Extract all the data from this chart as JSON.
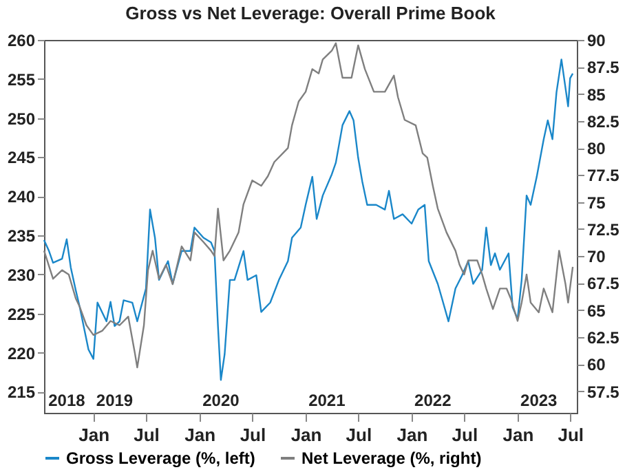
{
  "chart_data": {
    "type": "line",
    "title": "Gross vs Net Leverage: Overall Prime Book",
    "xlim": [
      "2018-07-15",
      "2023-07-24"
    ],
    "xticks": [
      {
        "value": "2019-01-01",
        "label": "Jan"
      },
      {
        "value": "2019-07-01",
        "label": "Jul"
      },
      {
        "value": "2020-01-01",
        "label": "Jan"
      },
      {
        "value": "2020-07-01",
        "label": "Jul"
      },
      {
        "value": "2021-01-01",
        "label": "Jan"
      },
      {
        "value": "2021-07-01",
        "label": "Jul"
      },
      {
        "value": "2022-01-01",
        "label": "Jan"
      },
      {
        "value": "2022-07-01",
        "label": "Jul"
      },
      {
        "value": "2023-01-01",
        "label": "Jan"
      },
      {
        "value": "2023-07-01",
        "label": "Jul"
      }
    ],
    "x2lim": [
      "2018-07-15",
      "2023-07-24"
    ],
    "x2ticks": [
      {
        "value": "2018-10-01",
        "label": "2018"
      },
      {
        "value": "2019-03-15",
        "label": "2019"
      },
      {
        "value": "2020-03-15",
        "label": "2020"
      },
      {
        "value": "2021-03-15",
        "label": "2021"
      },
      {
        "value": "2022-03-15",
        "label": "2022"
      },
      {
        "value": "2023-03-15",
        "label": "2023"
      }
    ],
    "ylim": [
      212.3,
      260
    ],
    "yticks": [
      215,
      220,
      225,
      230,
      235,
      240,
      245,
      250,
      255,
      260
    ],
    "y2lim": [
      55.5,
      90
    ],
    "y2ticks": [
      57.5,
      60,
      62.5,
      65,
      67.5,
      70,
      72.5,
      75,
      77.5,
      80,
      82.5,
      85,
      87.5,
      90
    ],
    "grid": false,
    "legend": "bottom",
    "series": [
      {
        "name": "Gross Leverage (%, left)",
        "color": "#1a87c9",
        "axis": "y",
        "x": [
          "2018-07-15",
          "2018-08-01",
          "2018-08-15",
          "2018-09-15",
          "2018-10-01",
          "2018-10-15",
          "2018-11-01",
          "2018-11-15",
          "2018-12-15",
          "2019-01-01",
          "2019-01-15",
          "2019-02-15",
          "2019-03-01",
          "2019-03-15",
          "2019-04-01",
          "2019-04-15",
          "2019-05-15",
          "2019-06-01",
          "2019-07-01",
          "2019-07-15",
          "2019-08-01",
          "2019-08-15",
          "2019-09-15",
          "2019-10-01",
          "2019-11-01",
          "2019-12-01",
          "2019-12-15",
          "2020-01-15",
          "2020-02-10",
          "2020-02-22",
          "2020-03-05",
          "2020-03-15",
          "2020-03-28",
          "2020-04-15",
          "2020-05-01",
          "2020-06-01",
          "2020-06-15",
          "2020-07-15",
          "2020-08-01",
          "2020-09-01",
          "2020-10-01",
          "2020-11-01",
          "2020-11-15",
          "2020-12-15",
          "2021-01-01",
          "2021-01-24",
          "2021-02-08",
          "2021-03-01",
          "2021-04-01",
          "2021-04-15",
          "2021-05-08",
          "2021-06-01",
          "2021-06-15",
          "2021-07-01",
          "2021-07-15",
          "2021-08-01",
          "2021-09-01",
          "2021-10-01",
          "2021-10-15",
          "2021-11-01",
          "2021-12-01",
          "2022-01-01",
          "2022-01-24",
          "2022-02-15",
          "2022-03-01",
          "2022-04-01",
          "2022-04-15",
          "2022-05-08",
          "2022-06-01",
          "2022-06-24",
          "2022-07-15",
          "2022-08-01",
          "2022-09-01",
          "2022-09-15",
          "2022-10-01",
          "2022-10-15",
          "2022-11-01",
          "2022-12-01",
          "2022-12-15",
          "2023-01-01",
          "2023-01-15",
          "2023-02-01",
          "2023-02-15",
          "2023-03-08",
          "2023-04-01",
          "2023-04-15",
          "2023-05-01",
          "2023-05-15",
          "2023-06-01",
          "2023-06-24",
          "2023-07-01",
          "2023-07-10"
        ],
        "values": [
          234.4,
          233,
          231.5,
          232,
          234.5,
          230.9,
          228,
          225.8,
          220.4,
          219.2,
          226.4,
          224,
          226.5,
          223.4,
          224,
          226.7,
          226.4,
          224,
          228.2,
          238.3,
          234.7,
          229.3,
          231.7,
          228.8,
          233,
          233,
          236,
          234.7,
          234.1,
          233,
          223.4,
          216.5,
          219.8,
          229.3,
          229.3,
          233,
          229.3,
          229.9,
          225.2,
          226.4,
          229.3,
          231.7,
          234.7,
          236,
          238.9,
          242.5,
          237.1,
          240.1,
          242.8,
          244.3,
          249.1,
          250.9,
          249.7,
          244.9,
          241.9,
          238.9,
          238.9,
          238.3,
          240.7,
          237.1,
          237.7,
          236.5,
          238.3,
          238.9,
          231.7,
          228.8,
          227,
          224,
          228.2,
          229.9,
          231.7,
          228.8,
          230.6,
          236,
          231.2,
          232.7,
          230.6,
          232.7,
          225.8,
          224.3,
          229.3,
          240.1,
          238.9,
          242.5,
          247.3,
          249.7,
          247.3,
          253.3,
          257.5,
          251.5,
          255.1,
          255.7
        ]
      },
      {
        "name": "Net Leverage (%, right)",
        "color": "#7f7f7f",
        "axis": "y2",
        "x": [
          "2018-07-15",
          "2018-08-15",
          "2018-09-15",
          "2018-10-08",
          "2018-11-01",
          "2018-11-15",
          "2018-12-08",
          "2019-01-01",
          "2019-02-01",
          "2019-03-01",
          "2019-04-01",
          "2019-05-01",
          "2019-05-24",
          "2019-06-01",
          "2019-06-24",
          "2019-07-08",
          "2019-07-24",
          "2019-08-15",
          "2019-09-08",
          "2019-10-01",
          "2019-11-01",
          "2019-12-01",
          "2019-12-15",
          "2020-01-15",
          "2020-02-10",
          "2020-02-22",
          "2020-03-05",
          "2020-03-24",
          "2020-04-15",
          "2020-05-15",
          "2020-06-01",
          "2020-07-01",
          "2020-08-01",
          "2020-08-24",
          "2020-09-15",
          "2020-11-01",
          "2020-11-15",
          "2020-12-08",
          "2021-01-01",
          "2021-01-24",
          "2021-02-15",
          "2021-03-01",
          "2021-04-01",
          "2021-04-15",
          "2021-05-08",
          "2021-06-08",
          "2021-07-01",
          "2021-07-24",
          "2021-08-24",
          "2021-10-01",
          "2021-11-01",
          "2021-11-15",
          "2021-12-08",
          "2022-01-15",
          "2022-02-08",
          "2022-02-24",
          "2022-03-15",
          "2022-04-01",
          "2022-05-01",
          "2022-06-01",
          "2022-06-15",
          "2022-07-01",
          "2022-07-15",
          "2022-08-15",
          "2022-09-01",
          "2022-09-15",
          "2022-10-08",
          "2022-11-01",
          "2022-11-24",
          "2022-12-08",
          "2023-01-01",
          "2023-01-15",
          "2023-02-01",
          "2023-02-15",
          "2023-03-15",
          "2023-04-01",
          "2023-05-01",
          "2023-05-24",
          "2023-06-15",
          "2023-06-24",
          "2023-07-10"
        ],
        "values": [
          70.5,
          67.9,
          68.7,
          68.3,
          66.1,
          65.3,
          63.6,
          62.7,
          63.1,
          64,
          63.6,
          64.4,
          61,
          59.7,
          63.6,
          68.7,
          70.5,
          67.9,
          69.2,
          67.4,
          70.9,
          69.6,
          72.2,
          71.3,
          70.5,
          70,
          74.4,
          69.6,
          70.5,
          72.2,
          74.8,
          77,
          76.5,
          77.4,
          78.7,
          80,
          82.1,
          84.3,
          85.2,
          87.3,
          86.9,
          88.2,
          89,
          89.7,
          86.5,
          86.5,
          89.5,
          87.3,
          85.2,
          85.2,
          86.7,
          84.7,
          82.6,
          82.1,
          79.5,
          79.1,
          76.5,
          74.4,
          72.2,
          70.5,
          69.2,
          68.3,
          69.6,
          69.6,
          68.3,
          67,
          65.1,
          67,
          67,
          66.1,
          64,
          65.7,
          68.3,
          65.7,
          64.8,
          67,
          64.8,
          70.5,
          67.4,
          65.7,
          69
        ]
      }
    ]
  }
}
